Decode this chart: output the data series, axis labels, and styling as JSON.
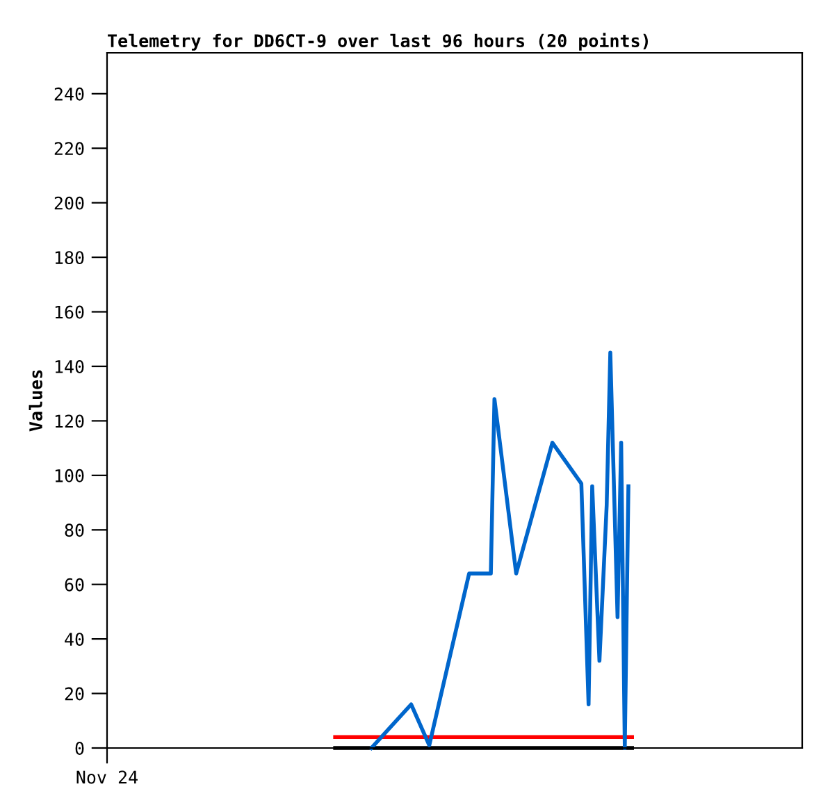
{
  "chart_data": {
    "type": "line",
    "title": "Telemetry for DD6CT-9 over last 96 hours (20 points)",
    "ylabel": "Values",
    "categories": [
      "Nov 24",
      null,
      null,
      null,
      null,
      null,
      null,
      null,
      null,
      null,
      null,
      null,
      null,
      null,
      null,
      null,
      null,
      null,
      null,
      null,
      null,
      null,
      null,
      null,
      null,
      null,
      null,
      null,
      null,
      null,
      null,
      null,
      null,
      null,
      null,
      null,
      null,
      null,
      null,
      null,
      null,
      null,
      null,
      null,
      null,
      null,
      null,
      null,
      null,
      null,
      null,
      null,
      null,
      null,
      null,
      null,
      null,
      null,
      null,
      null,
      null,
      null,
      null,
      null,
      null,
      null,
      null,
      null,
      null,
      null,
      null,
      null,
      null,
      null,
      null,
      null,
      null,
      null,
      null,
      null,
      null,
      null,
      null,
      null,
      null,
      null,
      null,
      null,
      null,
      null,
      null,
      null,
      null,
      null,
      null,
      null,
      null,
      null,
      null,
      null,
      null,
      null,
      null,
      null,
      null,
      null,
      null,
      null,
      null,
      null,
      null,
      null,
      null,
      null,
      null,
      null,
      null,
      null,
      null,
      null,
      null,
      null,
      null,
      null,
      null,
      null,
      null,
      null,
      null,
      null,
      null,
      null,
      null,
      null,
      null,
      null,
      null,
      null,
      null,
      null,
      null,
      null,
      null,
      null,
      null,
      null,
      null,
      null,
      null,
      null,
      null,
      null,
      null,
      null,
      null,
      null,
      null,
      null,
      null,
      null,
      null,
      null,
      null,
      null,
      null,
      null,
      null,
      null,
      null,
      null,
      null,
      null,
      null,
      null,
      null,
      null,
      null,
      null,
      null,
      null,
      null,
      null,
      null,
      null,
      null,
      null,
      null,
      null,
      null,
      null,
      null,
      null,
      null
    ],
    "ylim": [
      0,
      255
    ],
    "yticks": [
      0,
      20,
      40,
      60,
      80,
      100,
      120,
      140,
      160,
      180,
      200,
      220,
      240
    ],
    "grid": false,
    "marker": "none",
    "line_style": "solid",
    "series": [
      {
        "color": "#000000",
        "values": [
          null,
          null,
          null,
          null,
          null,
          null,
          null,
          null,
          null,
          null,
          null,
          null,
          null,
          null,
          null,
          null,
          null,
          null,
          null,
          null,
          null,
          null,
          null,
          null,
          null,
          null,
          null,
          null,
          null,
          null,
          null,
          null,
          null,
          null,
          null,
          null,
          null,
          null,
          null,
          null,
          null,
          null,
          null,
          null,
          null,
          null,
          null,
          null,
          null,
          null,
          null,
          null,
          null,
          null,
          null,
          null,
          null,
          null,
          null,
          null,
          null,
          null,
          null,
          0,
          0,
          0,
          0,
          0,
          0,
          0,
          0,
          0,
          0,
          0,
          0,
          0,
          0,
          0,
          0,
          0,
          0,
          0,
          0,
          0,
          0,
          0,
          0,
          0,
          0,
          0,
          0,
          0,
          0,
          0,
          0,
          0,
          0,
          0,
          0,
          0,
          0,
          0,
          0,
          0,
          0,
          0,
          0,
          0,
          0,
          0,
          0,
          0,
          0,
          0,
          0,
          0,
          0,
          0,
          0,
          0,
          0,
          0,
          0,
          0,
          0,
          0,
          0,
          0,
          0,
          0,
          0,
          0,
          0,
          0,
          0,
          0,
          0,
          0,
          0,
          0,
          0,
          0,
          0,
          0,
          0,
          0,
          null,
          null,
          null,
          null,
          null,
          null,
          null,
          null,
          null,
          null,
          null,
          null,
          null,
          null,
          null,
          null,
          null,
          null,
          null,
          null,
          null,
          null,
          null,
          null,
          null,
          null,
          null,
          null,
          null,
          null,
          null,
          null,
          null,
          null,
          null,
          null,
          null,
          null,
          null,
          null,
          null,
          null,
          null,
          null,
          null,
          null,
          null
        ]
      },
      {
        "color": "#ff0000",
        "values": [
          null,
          null,
          null,
          null,
          null,
          null,
          null,
          null,
          null,
          null,
          null,
          null,
          null,
          null,
          null,
          null,
          null,
          null,
          null,
          null,
          null,
          null,
          null,
          null,
          null,
          null,
          null,
          null,
          null,
          null,
          null,
          null,
          null,
          null,
          null,
          null,
          null,
          null,
          null,
          null,
          null,
          null,
          null,
          null,
          null,
          null,
          null,
          null,
          null,
          null,
          null,
          null,
          null,
          null,
          null,
          null,
          null,
          null,
          null,
          null,
          null,
          null,
          null,
          4,
          4,
          4,
          4,
          4,
          4,
          4,
          4,
          4,
          4,
          4,
          4,
          4,
          4,
          4,
          4,
          4,
          4,
          4,
          4,
          4,
          4,
          4,
          4,
          4,
          4,
          4,
          4,
          4,
          4,
          4,
          4,
          4,
          4,
          4,
          4,
          4,
          4,
          4,
          4,
          4,
          4,
          4,
          4,
          4,
          4,
          4,
          4,
          4,
          4,
          4,
          4,
          4,
          4,
          4,
          4,
          4,
          4,
          4,
          4,
          4,
          4,
          4,
          4,
          4,
          4,
          4,
          4,
          4,
          4,
          4,
          4,
          4,
          4,
          4,
          4,
          4,
          4,
          4,
          4,
          4,
          4,
          4,
          null,
          null,
          null,
          null,
          null,
          null,
          null,
          null,
          null,
          null,
          null,
          null,
          null,
          null,
          null,
          null,
          null,
          null,
          null,
          null,
          null,
          null,
          null,
          null,
          null,
          null,
          null,
          null,
          null,
          null,
          null,
          null,
          null,
          null,
          null,
          null,
          null,
          null,
          null,
          null,
          null,
          null,
          null,
          null,
          null,
          null,
          null
        ]
      },
      {
        "color": "#0066cc",
        "values": [
          null,
          null,
          null,
          null,
          null,
          null,
          null,
          null,
          null,
          null,
          null,
          null,
          null,
          null,
          null,
          null,
          null,
          null,
          null,
          null,
          null,
          null,
          null,
          null,
          null,
          null,
          null,
          null,
          null,
          null,
          null,
          null,
          null,
          null,
          null,
          null,
          null,
          null,
          null,
          null,
          null,
          null,
          null,
          null,
          null,
          null,
          null,
          null,
          null,
          null,
          null,
          null,
          null,
          null,
          null,
          null,
          null,
          null,
          null,
          null,
          null,
          null,
          null,
          null,
          null,
          null,
          null,
          null,
          null,
          null,
          null,
          null,
          null,
          0,
          null,
          null,
          null,
          null,
          null,
          null,
          null,
          null,
          null,
          null,
          16,
          null,
          null,
          null,
          null,
          1,
          null,
          null,
          null,
          null,
          null,
          null,
          null,
          null,
          null,
          null,
          64,
          null,
          null,
          null,
          null,
          null,
          64,
          128,
          null,
          null,
          null,
          null,
          null,
          64,
          null,
          null,
          null,
          null,
          null,
          null,
          null,
          null,
          null,
          112,
          null,
          null,
          null,
          null,
          null,
          null,
          null,
          97,
          null,
          16,
          96,
          64,
          32,
          null,
          89,
          145,
          null,
          48,
          112,
          0,
          96,
          null,
          null,
          null,
          null,
          null,
          null,
          null,
          null,
          null,
          null,
          null,
          null,
          null,
          null,
          null,
          null,
          null,
          null,
          null,
          null,
          null,
          null,
          null,
          null,
          null,
          null,
          null,
          null,
          null,
          null,
          null,
          null,
          null,
          null,
          null,
          null,
          null,
          null,
          null,
          null,
          null,
          null,
          null,
          null,
          null,
          null,
          null,
          null
        ]
      }
    ]
  }
}
